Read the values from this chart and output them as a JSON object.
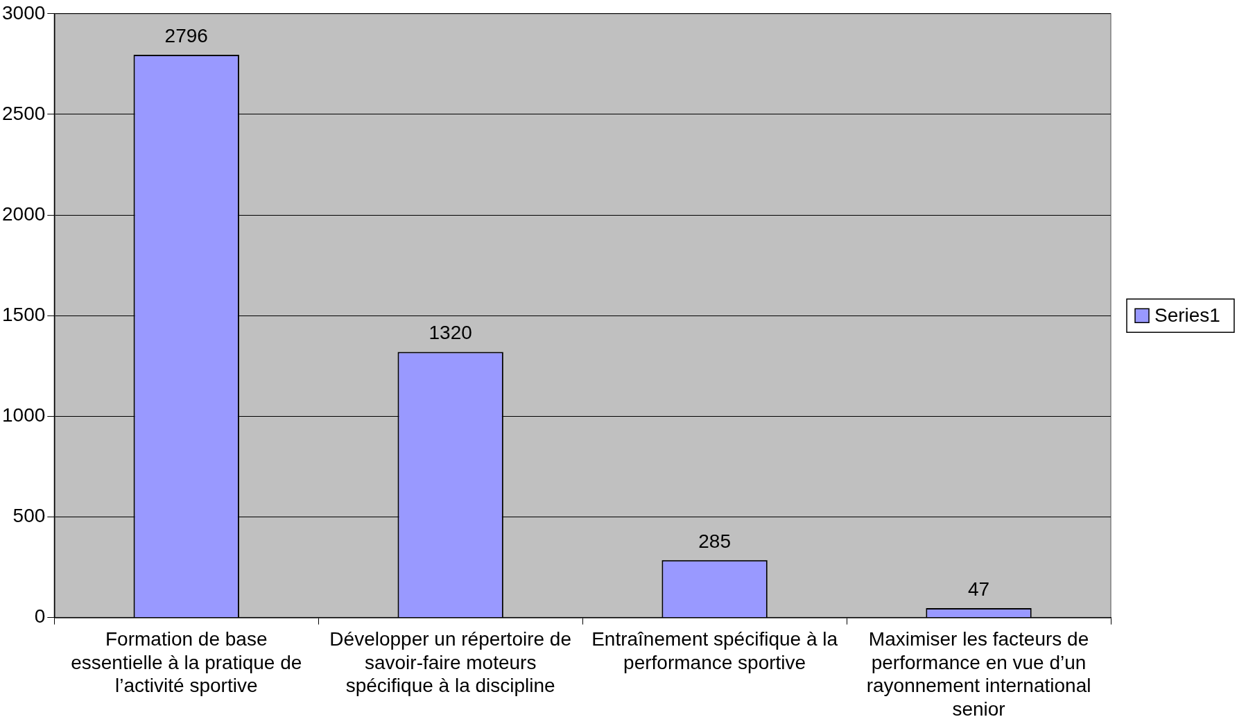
{
  "chart_data": {
    "type": "bar",
    "categories": [
      "Formation de base essentielle à la pratique de l’activité sportive",
      "Développer un répertoire de savoir-faire moteurs spécifique à la discipline",
      "Entraînement spécifique à la performance sportive",
      "Maximiser les facteurs de performance en vue d’un rayonnement international senior"
    ],
    "series": [
      {
        "name": "Series1",
        "color": "#9999ff",
        "values": [
          2796,
          1320,
          285,
          47
        ]
      }
    ],
    "ylim": [
      0,
      3000
    ],
    "yticks": [
      0,
      500,
      1000,
      1500,
      2000,
      2500,
      3000
    ],
    "grid": "y",
    "legend": "right",
    "data_labels": true
  }
}
